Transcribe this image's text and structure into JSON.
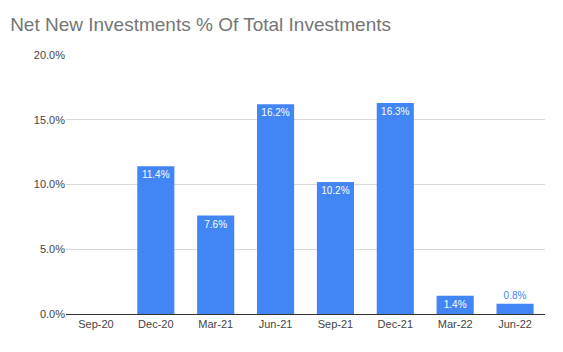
{
  "chart_data": {
    "type": "bar",
    "title": "Net New Investments % Of Total Investments",
    "categories": [
      "Sep-20",
      "Dec-20",
      "Mar-21",
      "Jun-21",
      "Sep-21",
      "Dec-21",
      "Mar-22",
      "Jun-22"
    ],
    "values": [
      null,
      11.4,
      7.6,
      16.2,
      10.2,
      16.3,
      1.4,
      0.8
    ],
    "value_labels": [
      null,
      "11.4%",
      "7.6%",
      "16.2%",
      "10.2%",
      "16.3%",
      "1.4%",
      "0.8%"
    ],
    "color": "#4285f4",
    "ylim": [
      0,
      20
    ],
    "yticks": [
      {
        "value": 0,
        "label": "0.0%"
      },
      {
        "value": 5,
        "label": "5.0%"
      },
      {
        "value": 10,
        "label": "10.0%"
      },
      {
        "value": 15,
        "label": "15.0%"
      },
      {
        "value": 20,
        "label": "20.0%"
      }
    ],
    "grid": true,
    "data_labels": true
  }
}
